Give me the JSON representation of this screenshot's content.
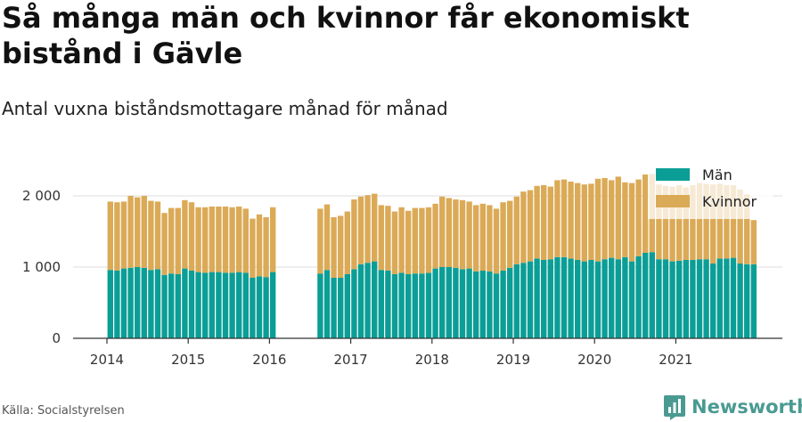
{
  "title": "Så många män och kvinnor får ekonomiskt bistånd i Gävle",
  "subtitle": "Antal vuxna biståndsmottagare månad för månad",
  "source": "Källa: Socialstyrelsen",
  "brand": {
    "name": "Newsworthy",
    "icon": "newsworthy-logo-icon",
    "color": "#4a9a92"
  },
  "chart_data": {
    "type": "bar",
    "stacked": true,
    "x_start": "2014-01",
    "x_ticks": [
      "2014",
      "2015",
      "2016",
      "2017",
      "2018",
      "2019",
      "2020",
      "2021"
    ],
    "y_ticks": [
      {
        "value": 0,
        "label": "0"
      },
      {
        "value": 1000,
        "label": "1 000"
      },
      {
        "value": 2000,
        "label": "2 000"
      }
    ],
    "ylim": [
      0,
      2400
    ],
    "grid": true,
    "legend_position": "top-right",
    "series": [
      {
        "name": "Män",
        "color": "#0b9e96",
        "values": [
          960,
          950,
          980,
          990,
          1000,
          990,
          960,
          970,
          890,
          910,
          900,
          980,
          950,
          930,
          920,
          930,
          930,
          920,
          920,
          930,
          920,
          850,
          870,
          860,
          930,
          null,
          null,
          null,
          null,
          null,
          null,
          910,
          960,
          850,
          850,
          900,
          970,
          1040,
          1060,
          1080,
          960,
          950,
          900,
          920,
          900,
          910,
          910,
          920,
          980,
          1000,
          1000,
          990,
          970,
          980,
          940,
          950,
          940,
          910,
          950,
          990,
          1040,
          1060,
          1080,
          1120,
          1100,
          1110,
          1140,
          1140,
          1120,
          1100,
          1080,
          1100,
          1080,
          1110,
          1130,
          1110,
          1140,
          1080,
          1150,
          1200,
          1210,
          1110,
          1110,
          1080,
          1090,
          1100,
          1100,
          1110,
          1110,
          1050,
          1120,
          1120,
          1130,
          1050,
          1040,
          1040
        ]
      },
      {
        "name": "Kvinnor",
        "color": "#dbaa57",
        "values": [
          960,
          960,
          940,
          1010,
          980,
          1010,
          970,
          950,
          870,
          920,
          930,
          960,
          960,
          910,
          920,
          920,
          920,
          930,
          920,
          920,
          900,
          830,
          870,
          840,
          910,
          null,
          null,
          null,
          null,
          null,
          null,
          910,
          920,
          850,
          870,
          880,
          980,
          950,
          950,
          950,
          910,
          910,
          880,
          920,
          890,
          920,
          920,
          920,
          910,
          990,
          970,
          960,
          970,
          940,
          930,
          940,
          930,
          910,
          960,
          940,
          950,
          1000,
          1000,
          1020,
          1050,
          1020,
          1080,
          1090,
          1080,
          1080,
          1080,
          1070,
          1160,
          1140,
          1090,
          1160,
          1050,
          1100,
          1080,
          1100,
          1100,
          1050,
          1030,
          1050,
          1060,
          1020,
          1050,
          1070,
          1060,
          1110,
          1050,
          1030,
          1020,
          1040,
          980,
          620
        ]
      }
    ]
  }
}
